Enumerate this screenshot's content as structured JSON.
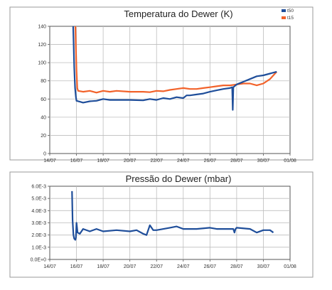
{
  "chart_data": [
    {
      "type": "line",
      "title": "Temperatura do Dewer (K)",
      "xlabel": "",
      "ylabel": "",
      "x_tick_labels": [
        "14/07",
        "16/07",
        "18/07",
        "20/07",
        "22/07",
        "24/07",
        "26/07",
        "28/07",
        "30/07",
        "01/08"
      ],
      "y_tick_labels": [
        "0",
        "20",
        "40",
        "60",
        "80",
        "100",
        "120",
        "140"
      ],
      "xlim": [
        "14/07",
        "01/08"
      ],
      "ylim": [
        0,
        140
      ],
      "grid": true,
      "legend_position": "top-right",
      "series": [
        {
          "name": "t50",
          "color": "#1f4e9a",
          "points": [
            [
              "15/07 18:00",
              140
            ],
            [
              "15/07 19:00",
              120
            ],
            [
              "15/07 20:00",
              95
            ],
            [
              "15/07 21:30",
              72
            ],
            [
              "15/07 23:00",
              62
            ],
            [
              "16/07 00:00",
              58
            ],
            [
              "16/07 06:00",
              57
            ],
            [
              "16/07 12:00",
              56
            ],
            [
              "17/07 00:00",
              57.5
            ],
            [
              "17/07 12:00",
              58
            ],
            [
              "18/07 00:00",
              60
            ],
            [
              "18/07 12:00",
              59
            ],
            [
              "19/07 00:00",
              59
            ],
            [
              "20/07 00:00",
              59
            ],
            [
              "21/07 00:00",
              58.5
            ],
            [
              "21/07 12:00",
              60
            ],
            [
              "22/07 00:00",
              59
            ],
            [
              "22/07 12:00",
              61
            ],
            [
              "23/07 00:00",
              60
            ],
            [
              "23/07 12:00",
              62
            ],
            [
              "24/07 00:00",
              61
            ],
            [
              "24/07 06:00",
              64
            ],
            [
              "24/07 12:00",
              64
            ],
            [
              "25/07 00:00",
              65
            ],
            [
              "25/07 12:00",
              66
            ],
            [
              "26/07 00:00",
              68
            ],
            [
              "26/07 12:00",
              69.5
            ],
            [
              "27/07 00:00",
              71
            ],
            [
              "27/07 12:00",
              72
            ],
            [
              "27/07 16:00",
              73
            ],
            [
              "27/07 17:00",
              48
            ],
            [
              "27/07 18:00",
              73
            ],
            [
              "28/07 00:00",
              76
            ],
            [
              "28/07 12:00",
              79
            ],
            [
              "29/07 00:00",
              82
            ],
            [
              "29/07 12:00",
              85
            ],
            [
              "30/07 00:00",
              86
            ],
            [
              "30/07 12:00",
              88
            ],
            [
              "31/07 00:00",
              90
            ]
          ]
        },
        {
          "name": "t15",
          "color": "#f2622a",
          "points": [
            [
              "15/07 22:00",
              140
            ],
            [
              "15/07 23:00",
              115
            ],
            [
              "16/07 00:00",
              92
            ],
            [
              "16/07 01:30",
              72
            ],
            [
              "16/07 03:00",
              69
            ],
            [
              "16/07 12:00",
              68
            ],
            [
              "17/07 00:00",
              69
            ],
            [
              "17/07 12:00",
              67
            ],
            [
              "18/07 00:00",
              69
            ],
            [
              "18/07 12:00",
              68
            ],
            [
              "19/07 00:00",
              69
            ],
            [
              "20/07 00:00",
              68
            ],
            [
              "21/07 00:00",
              68
            ],
            [
              "21/07 12:00",
              67.5
            ],
            [
              "22/07 00:00",
              69
            ],
            [
              "22/07 12:00",
              68.5
            ],
            [
              "23/07 00:00",
              70
            ],
            [
              "23/07 12:00",
              71
            ],
            [
              "24/07 00:00",
              72
            ],
            [
              "24/07 12:00",
              71
            ],
            [
              "25/07 00:00",
              71
            ],
            [
              "25/07 12:00",
              72
            ],
            [
              "26/07 00:00",
              73
            ],
            [
              "26/07 12:00",
              74
            ],
            [
              "27/07 00:00",
              75
            ],
            [
              "27/07 12:00",
              75
            ],
            [
              "28/07 00:00",
              76
            ],
            [
              "28/07 12:00",
              77
            ],
            [
              "29/07 00:00",
              77
            ],
            [
              "29/07 12:00",
              75
            ],
            [
              "30/07 00:00",
              77
            ],
            [
              "30/07 12:00",
              82
            ],
            [
              "31/07 00:00",
              90
            ]
          ]
        }
      ]
    },
    {
      "type": "line",
      "title": "Pressão do Dewer (mbar)",
      "xlabel": "",
      "ylabel": "",
      "x_tick_labels": [
        "14/07",
        "16/07",
        "18/07",
        "20/07",
        "22/07",
        "24/07",
        "26/07",
        "28/07",
        "30/07",
        "01/08"
      ],
      "y_tick_labels": [
        "0.0E+0",
        "1.0E-3",
        "2.0E-3",
        "3.0E-3",
        "4.0E-3",
        "5.0E-3",
        "6.0E-3"
      ],
      "xlim": [
        "14/07",
        "01/08"
      ],
      "ylim": [
        0,
        0.006
      ],
      "grid": true,
      "legend_position": "none",
      "series": [
        {
          "color": "#1f4e9a",
          "points": [
            [
              "15/07 16:00",
              0.0056
            ],
            [
              "15/07 17:00",
              0.0032
            ],
            [
              "15/07 18:30",
              0.002
            ],
            [
              "15/07 20:00",
              0.0017
            ],
            [
              "15/07 22:00",
              0.0016
            ],
            [
              "15/07 23:00",
              0.0018
            ],
            [
              "16/07 00:00",
              0.003
            ],
            [
              "16/07 02:00",
              0.0022
            ],
            [
              "16/07 06:00",
              0.0021
            ],
            [
              "16/07 12:00",
              0.0025
            ],
            [
              "17/07 00:00",
              0.0023
            ],
            [
              "17/07 12:00",
              0.0025
            ],
            [
              "18/07 00:00",
              0.0023
            ],
            [
              "19/07 00:00",
              0.0024
            ],
            [
              "20/07 00:00",
              0.0023
            ],
            [
              "20/07 12:00",
              0.0024
            ],
            [
              "21/07 00:00",
              0.0021
            ],
            [
              "21/07 06:00",
              0.002
            ],
            [
              "21/07 12:00",
              0.0028
            ],
            [
              "21/07 18:00",
              0.0024
            ],
            [
              "22/07 00:00",
              0.0024
            ],
            [
              "23/07 00:00",
              0.0026
            ],
            [
              "23/07 12:00",
              0.0027
            ],
            [
              "24/07 00:00",
              0.0025
            ],
            [
              "25/07 00:00",
              0.0025
            ],
            [
              "26/07 00:00",
              0.0026
            ],
            [
              "26/07 12:00",
              0.0025
            ],
            [
              "27/07 00:00",
              0.0025
            ],
            [
              "27/07 18:00",
              0.0025
            ],
            [
              "27/07 20:00",
              0.0022
            ],
            [
              "27/07 22:00",
              0.0025
            ],
            [
              "28/07 00:00",
              0.0026
            ],
            [
              "29/07 00:00",
              0.0025
            ],
            [
              "29/07 12:00",
              0.0022
            ],
            [
              "30/07 00:00",
              0.0024
            ],
            [
              "30/07 12:00",
              0.0024
            ],
            [
              "30/07 18:00",
              0.0022
            ]
          ]
        }
      ]
    }
  ]
}
